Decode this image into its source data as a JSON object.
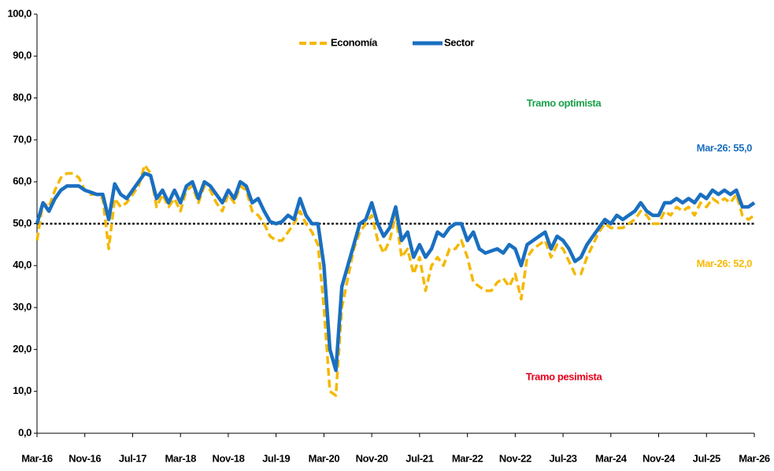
{
  "chart_data": {
    "type": "line",
    "categories": [
      "Mar-16",
      null,
      null,
      null,
      null,
      null,
      null,
      null,
      "Nov-16",
      null,
      null,
      null,
      null,
      null,
      null,
      null,
      "Jul-17",
      null,
      null,
      null,
      null,
      null,
      null,
      null,
      "Mar-18",
      null,
      null,
      null,
      null,
      null,
      null,
      null,
      "Nov-18",
      null,
      null,
      null,
      null,
      null,
      null,
      null,
      "Jul-19",
      null,
      null,
      null,
      null,
      null,
      null,
      null,
      "Mar-20",
      null,
      null,
      null,
      null,
      null,
      null,
      null,
      "Nov-20",
      null,
      null,
      null,
      null,
      null,
      null,
      null,
      "Jul-21",
      null,
      null,
      null,
      null,
      null,
      null,
      null,
      "Mar-22",
      null,
      null,
      null,
      null,
      null,
      null,
      null,
      "Nov-22",
      null,
      null,
      null,
      null,
      null,
      null,
      null,
      "Jul-23",
      null,
      null,
      null,
      null,
      null,
      null,
      null,
      "Mar-24",
      null,
      null,
      null,
      null,
      null,
      null,
      null,
      "Nov-24",
      null,
      null,
      null,
      null,
      null,
      null,
      null,
      "Jul-25",
      null,
      null,
      null,
      null,
      null,
      null,
      null,
      "Mar-26"
    ],
    "series": [
      {
        "name": "Economía",
        "color": "#f5b800",
        "style": "dashed",
        "values": [
          46,
          55,
          54,
          58,
          61,
          62,
          62,
          61,
          58,
          57,
          57,
          56,
          44,
          56,
          54,
          55,
          57,
          59,
          64,
          62,
          54,
          57,
          54,
          56,
          53,
          58,
          59,
          55,
          59,
          58,
          55,
          53,
          57,
          55,
          59,
          58,
          53,
          52,
          50,
          47,
          46,
          46,
          48,
          50,
          53,
          50,
          48,
          45,
          30,
          10,
          9,
          30,
          37,
          44,
          48,
          50,
          52,
          46,
          43,
          46,
          52,
          42,
          44,
          38,
          42,
          34,
          40,
          42,
          40,
          44,
          44,
          46,
          42,
          36,
          35,
          34,
          34,
          36,
          37,
          35,
          38,
          32,
          42,
          44,
          45,
          46,
          42,
          45,
          44,
          41,
          38,
          38,
          42,
          45,
          48,
          50,
          49,
          49,
          49,
          50,
          51,
          53,
          52,
          50,
          50,
          53,
          52,
          54,
          53,
          54,
          52,
          55,
          54,
          56,
          55,
          56,
          55,
          57,
          52,
          51,
          52
        ]
      },
      {
        "name": "Sector",
        "color": "#1a6fc0",
        "style": "solid",
        "values": [
          50,
          55,
          53,
          56,
          58,
          59,
          59,
          59,
          58,
          57.5,
          57,
          57,
          51,
          59.5,
          57,
          56,
          58,
          60,
          62,
          61.5,
          56,
          58,
          55,
          58,
          55,
          59,
          60,
          56,
          60,
          59,
          57,
          55,
          58,
          56,
          60,
          59,
          55,
          56,
          53,
          50.5,
          50,
          50.5,
          52,
          51,
          56,
          52,
          50,
          50,
          40,
          20,
          15,
          35,
          40,
          45,
          50,
          51,
          55,
          50,
          47,
          49,
          54,
          46,
          48,
          42,
          45,
          42,
          44,
          48,
          47,
          49,
          50,
          50,
          46,
          48,
          44,
          43,
          43.5,
          44,
          43,
          45,
          44,
          40,
          45,
          46,
          47,
          48,
          44,
          47,
          46,
          44,
          41,
          42,
          45,
          47,
          49,
          51,
          50,
          52,
          51,
          52,
          53,
          55,
          53,
          52,
          52,
          55,
          55,
          56,
          55,
          56,
          55,
          57,
          56,
          58,
          57,
          58,
          57,
          58,
          54,
          54,
          55
        ]
      }
    ],
    "ylim": [
      0,
      100
    ],
    "yticks": [
      {
        "value": 0,
        "label": "0,0"
      },
      {
        "value": 10,
        "label": "10,0"
      },
      {
        "value": 20,
        "label": "20,0"
      },
      {
        "value": 30,
        "label": "30,0"
      },
      {
        "value": 40,
        "label": "40,0"
      },
      {
        "value": 50,
        "label": "50,0"
      },
      {
        "value": 60,
        "label": "60,0"
      },
      {
        "value": 70,
        "label": "70,0"
      },
      {
        "value": 80,
        "label": "80,0"
      },
      {
        "value": 90,
        "label": "90,0"
      },
      {
        "value": 100,
        "label": "100,0"
      }
    ],
    "reference_line": 50,
    "annotations": [
      {
        "text": "Tramo optimista",
        "color": "#1aa04a"
      },
      {
        "text": "Mar-26: 55,0",
        "color": "#1a6fc0"
      },
      {
        "text": "Mar-26: 52,0",
        "color": "#f5b800"
      },
      {
        "text": "Tramo pesimista",
        "color": "#e3001b"
      }
    ],
    "legend": "top"
  }
}
